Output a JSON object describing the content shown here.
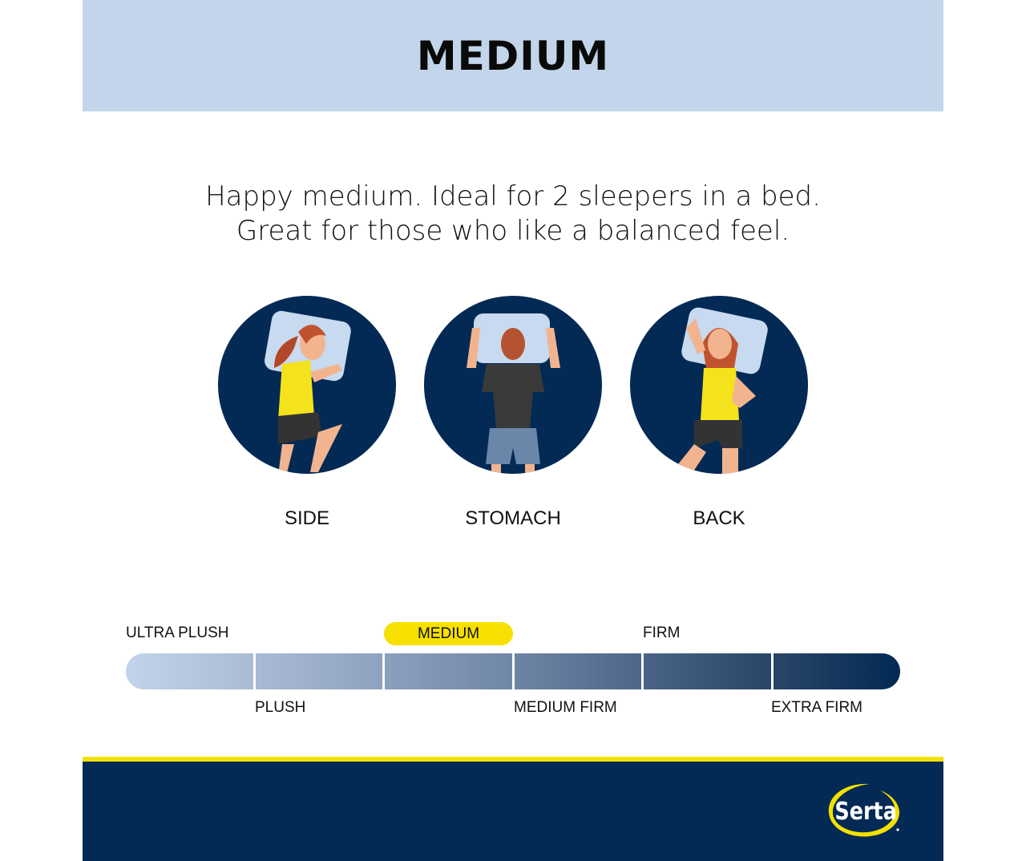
{
  "header": {
    "title": "MEDIUM"
  },
  "tagline": {
    "line1": "Happy medium. Ideal for 2 sleepers in a bed.",
    "line2": "Great for those who like a balanced feel."
  },
  "positions": [
    {
      "label": "SIDE",
      "icon": "side-sleeper-illustration"
    },
    {
      "label": "STOMACH",
      "icon": "stomach-sleeper-illustration"
    },
    {
      "label": "BACK",
      "icon": "back-sleeper-illustration"
    }
  ],
  "firmness_scale": {
    "levels": [
      "ULTRA PLUSH",
      "PLUSH",
      "MEDIUM",
      "MEDIUM FIRM",
      "FIRM",
      "EXTRA FIRM"
    ],
    "selected": "MEDIUM",
    "selected_index": 2,
    "highlight_color": "#f7e000"
  },
  "brand": {
    "logo_text": "Serta",
    "accent": "#f2e100",
    "navy": "#022a54"
  }
}
